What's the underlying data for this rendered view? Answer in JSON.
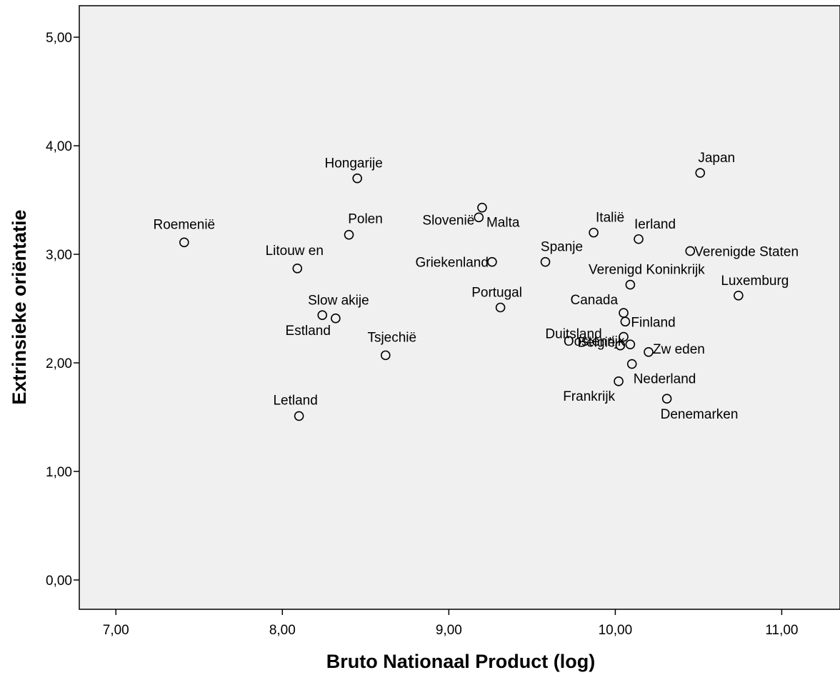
{
  "chart_data": {
    "type": "scatter",
    "title": "",
    "xlabel": "Bruto Nationaal Product (log)",
    "ylabel": "Extrinsieke oriëntatie",
    "xlim": [
      6.78,
      11.35
    ],
    "ylim": [
      -0.27,
      5.29
    ],
    "x_ticks": [
      7,
      8,
      9,
      10,
      11
    ],
    "x_tick_labels": [
      "7,00",
      "8,00",
      "9,00",
      "10,00",
      "11,00"
    ],
    "y_ticks": [
      0,
      1,
      2,
      3,
      4,
      5
    ],
    "y_tick_labels": [
      "0,00",
      "1,00",
      "2,00",
      "3,00",
      "4,00",
      "5,00"
    ],
    "grid": false,
    "legend": "none",
    "colors": {
      "plot_background": "#f0f0f0",
      "marker_stroke": "#000000",
      "text": "#000000"
    },
    "marker": "open-circle",
    "points": [
      {
        "label": "Roemenië",
        "x": 7.41,
        "y": 3.11
      },
      {
        "label": "Litouw en",
        "x": 8.09,
        "y": 2.87
      },
      {
        "label": "Slow akije",
        "x": 8.32,
        "y": 2.41
      },
      {
        "label": "Estland",
        "x": 8.24,
        "y": 2.44
      },
      {
        "label": "Letland",
        "x": 8.1,
        "y": 1.51
      },
      {
        "label": "Hongarije",
        "x": 8.45,
        "y": 3.7
      },
      {
        "label": "Polen",
        "x": 8.4,
        "y": 3.18
      },
      {
        "label": "Tsjechië",
        "x": 8.62,
        "y": 2.07
      },
      {
        "label": "Malta",
        "x": 9.2,
        "y": 3.43
      },
      {
        "label": "Slovenië",
        "x": 9.18,
        "y": 3.34
      },
      {
        "label": "Griekenland",
        "x": 9.26,
        "y": 2.93
      },
      {
        "label": "Portugal",
        "x": 9.31,
        "y": 2.51
      },
      {
        "label": "Spanje",
        "x": 9.58,
        "y": 2.93
      },
      {
        "label": "Italië",
        "x": 9.87,
        "y": 3.2
      },
      {
        "label": "Ierland",
        "x": 10.14,
        "y": 3.14
      },
      {
        "label": "Japan",
        "x": 10.51,
        "y": 3.75
      },
      {
        "label": "Verenigde Staten",
        "x": 10.45,
        "y": 3.03
      },
      {
        "label": "Verenigd Koninkrijk",
        "x": 10.09,
        "y": 2.72
      },
      {
        "label": "Luxemburg",
        "x": 10.74,
        "y": 2.62
      },
      {
        "label": "Canada",
        "x": 10.05,
        "y": 2.46
      },
      {
        "label": "Finland",
        "x": 10.06,
        "y": 2.38
      },
      {
        "label": "Duitsland",
        "x": 10.05,
        "y": 2.24
      },
      {
        "label": "België",
        "x": 10.03,
        "y": 2.16
      },
      {
        "label": "Zw eden",
        "x": 10.2,
        "y": 2.1
      },
      {
        "label": "Oostenrijk",
        "x": 10.09,
        "y": 2.17
      },
      {
        "label": "Nederland",
        "x": 10.1,
        "y": 1.99
      },
      {
        "label": "Frankrijk",
        "x": 10.02,
        "y": 1.83
      },
      {
        "label": "Denemarken",
        "x": 10.31,
        "y": 1.67
      }
    ]
  }
}
